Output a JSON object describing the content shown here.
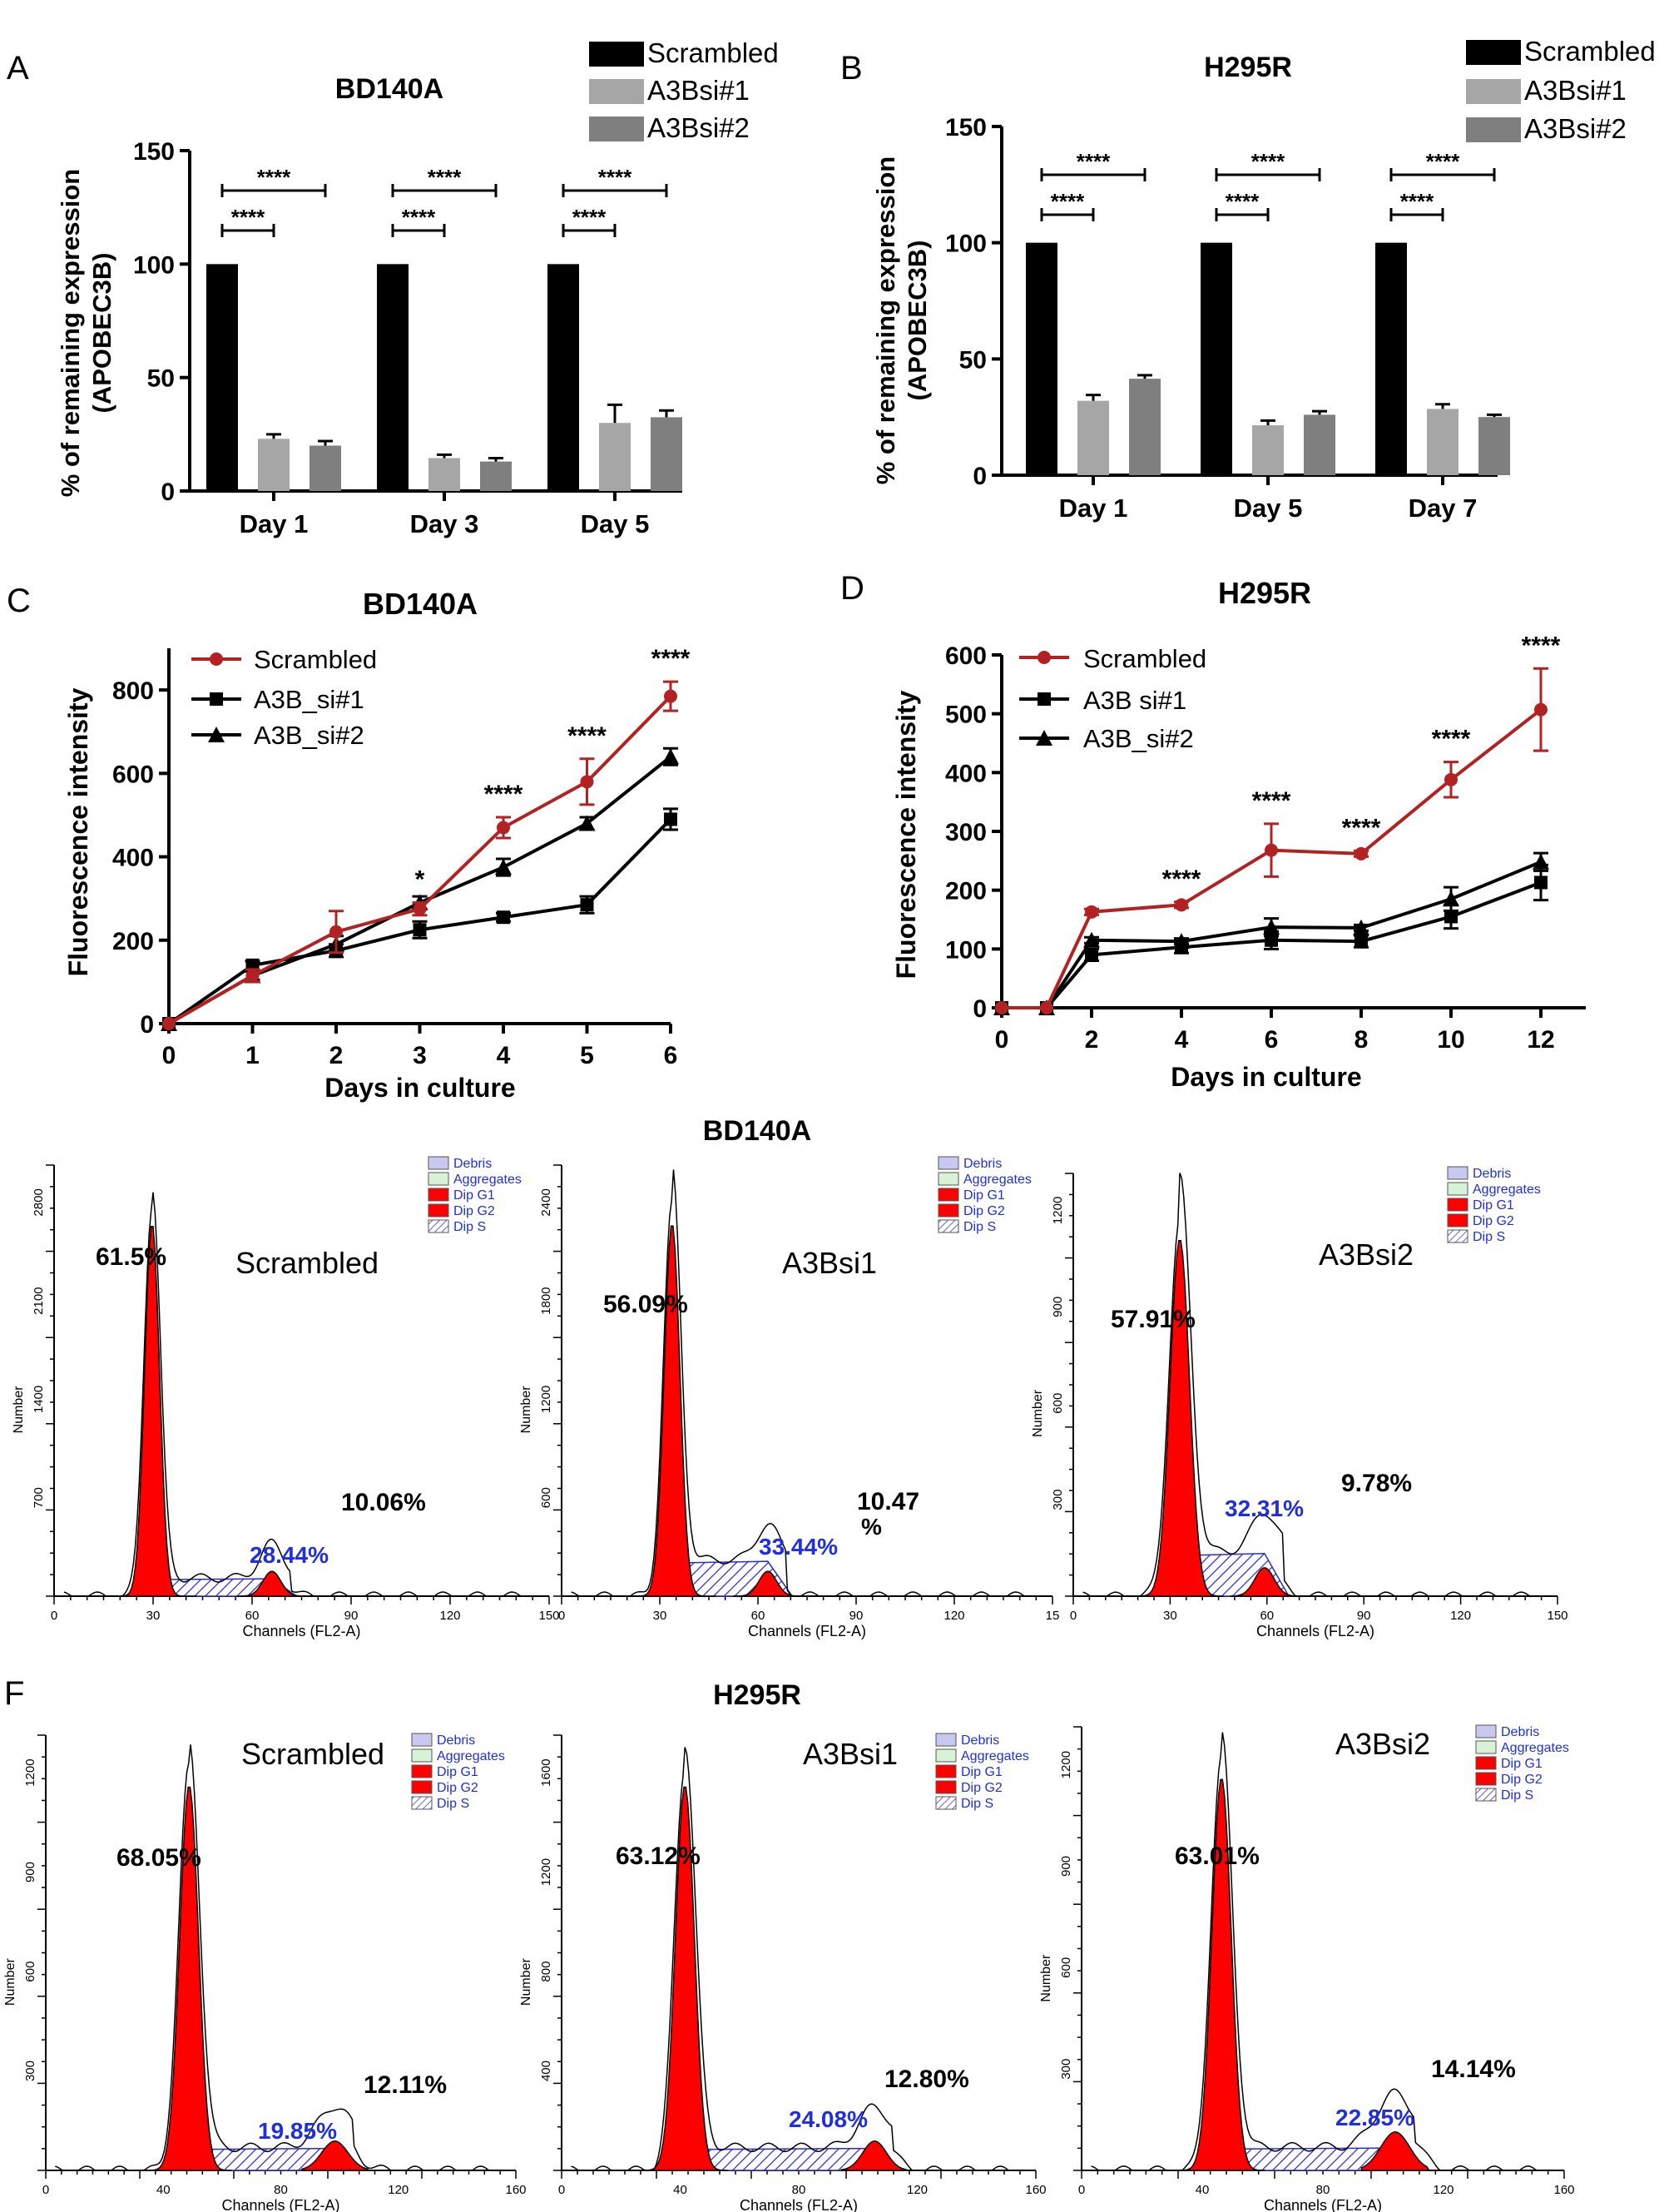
{
  "panel_a": {
    "letter": "A",
    "title": "BD140A",
    "ylabel_line1": "% of remaining expression",
    "ylabel_line2": "(APOBEC3B)",
    "ylim": [
      0,
      150
    ],
    "yticks": [
      "0",
      "50",
      "100",
      "150"
    ],
    "categories": [
      "Day 1",
      "Day 3",
      "Day 5"
    ],
    "legend": [
      "Scrambled",
      "A3Bsi#1",
      "A3Bsi#2"
    ],
    "sig": "****"
  },
  "panel_b": {
    "letter": "B",
    "title": "H295R",
    "ylabel_line1": "% of remaining expression",
    "ylabel_line2": "(APOBEC3B)",
    "ylim": [
      0,
      150
    ],
    "yticks": [
      "0",
      "50",
      "100",
      "150"
    ],
    "categories": [
      "Day 1",
      "Day 5",
      "Day 7"
    ],
    "legend": [
      "Scrambled",
      "A3Bsi#1",
      "A3Bsi#2"
    ],
    "sig": "****"
  },
  "panel_c": {
    "letter": "C",
    "title": "BD140A",
    "ylabel": "Fluorescence intensity",
    "xlabel": "Days in culture",
    "legend": [
      "Scrambled",
      "A3B_si#1",
      "A3B_si#2"
    ],
    "yticks": [
      "0",
      "200",
      "400",
      "600",
      "800"
    ],
    "xticks": [
      "0",
      "1",
      "2",
      "3",
      "4",
      "5",
      "6"
    ],
    "sig_labels": [
      "*",
      "****",
      "****",
      "****"
    ]
  },
  "panel_d": {
    "letter": "D",
    "title": "H295R",
    "ylabel": "Fluorescence intensity",
    "xlabel": "Days in culture",
    "legend": [
      "Scrambled",
      "A3B si#1",
      "A3B_si#2"
    ],
    "yticks": [
      "0",
      "100",
      "200",
      "300",
      "400",
      "500",
      "600"
    ],
    "xticks": [
      "0",
      "2",
      "4",
      "6",
      "8",
      "10",
      "12"
    ],
    "sig_labels": [
      "****",
      "****",
      "****",
      "****",
      "****"
    ]
  },
  "panel_e": {
    "title": "BD140A",
    "legend": [
      "Debris",
      "Aggregates",
      "Dip G1",
      "Dip G2",
      "Dip S"
    ],
    "ylabel": "Number",
    "xlabel": "Channels (FL2-A)",
    "hists": [
      {
        "sample": "Scrambled",
        "g1": "61.5%",
        "s": "28.44%",
        "g2": "10.06%",
        "yticks": [
          "0",
          "700",
          "1400",
          "2100",
          "2800"
        ],
        "xticks": [
          "0",
          "30",
          "60",
          "90",
          "120",
          "150"
        ]
      },
      {
        "sample": "A3Bsi1",
        "g1": "56.09%",
        "s": "33.44%",
        "g2": "10.47",
        "g2_extra": "%",
        "yticks": [
          "0",
          "600",
          "1200",
          "1800",
          "2400"
        ],
        "xticks": [
          "0",
          "30",
          "60",
          "90",
          "120",
          "15"
        ]
      },
      {
        "sample": "A3Bsi2",
        "g1": "57.91%",
        "s": "32.31%",
        "g2": "9.78%",
        "yticks": [
          "0",
          "300",
          "600",
          "900",
          "1200"
        ],
        "xticks": [
          "0",
          "30",
          "60",
          "90",
          "120",
          "150"
        ]
      }
    ]
  },
  "panel_f": {
    "letter": "F",
    "title": "H295R",
    "legend": [
      "Debris",
      "Aggregates",
      "Dip G1",
      "Dip G2",
      "Dip S"
    ],
    "ylabel": "Number",
    "xlabel": "Channels (FL2-A)",
    "hists": [
      {
        "sample": "Scrambled",
        "g1": "68.05%",
        "s": "19.85%",
        "g2": "12.11%",
        "yticks": [
          "0",
          "300",
          "600",
          "900",
          "1200"
        ],
        "xticks": [
          "0",
          "40",
          "80",
          "120",
          "160"
        ]
      },
      {
        "sample": "A3Bsi1",
        "g1": "63.12%",
        "s": "24.08%",
        "g2": "12.80%",
        "yticks": [
          "0",
          "400",
          "800",
          "1200",
          "1600"
        ],
        "xticks": [
          "0",
          "40",
          "80",
          "120",
          "160"
        ]
      },
      {
        "sample": "A3Bsi2",
        "g1": "63.01%",
        "s": "22.85%",
        "g2": "14.14%",
        "yticks": [
          "0",
          "300",
          "600",
          "900",
          "1200"
        ],
        "xticks": [
          "0",
          "40",
          "80",
          "120",
          "160"
        ]
      }
    ]
  },
  "colors": {
    "scrambled": "#000000",
    "si1": "#a6a6a6",
    "si2": "#7f7f7f",
    "red_line": "#b22222",
    "g1_fill": "#ff0000",
    "s_hatch": "#2b2bd0",
    "percent_blue": "#1f2fe0",
    "debris_fill": "#c8c8f0",
    "aggregates_fill": "#d8f2d8"
  },
  "chart_data": [
    {
      "type": "bar",
      "panel": "A",
      "title": "BD140A",
      "categories": [
        "Day 1",
        "Day 3",
        "Day 5"
      ],
      "ylim": [
        0,
        150
      ],
      "series": [
        {
          "name": "Scrambled",
          "values": [
            100,
            100,
            100
          ],
          "err": [
            0,
            0,
            0
          ]
        },
        {
          "name": "A3Bsi#1",
          "values": [
            23,
            14.5,
            30
          ],
          "err": [
            2,
            1.5,
            8
          ]
        },
        {
          "name": "A3Bsi#2",
          "values": [
            20,
            13,
            32.5
          ],
          "err": [
            2,
            1.5,
            3
          ]
        }
      ]
    },
    {
      "type": "bar",
      "panel": "B",
      "title": "H295R",
      "categories": [
        "Day 1",
        "Day 5",
        "Day 7"
      ],
      "ylim": [
        0,
        150
      ],
      "series": [
        {
          "name": "Scrambled",
          "values": [
            100,
            100,
            100
          ],
          "err": [
            0,
            0,
            0
          ]
        },
        {
          "name": "A3Bsi#1",
          "values": [
            32,
            21.5,
            28.5
          ],
          "err": [
            2.5,
            2,
            2
          ]
        },
        {
          "name": "A3Bsi#2",
          "values": [
            41.5,
            26,
            25
          ],
          "err": [
            1.5,
            1.5,
            1
          ]
        }
      ]
    },
    {
      "type": "line",
      "panel": "C",
      "title": "BD140A",
      "xlabel": "Days in culture",
      "ylabel": "Fluorescence intensity",
      "xlim": [
        0,
        6
      ],
      "ylim": [
        0,
        900
      ],
      "x": [
        0,
        1,
        2,
        3,
        4,
        5,
        6
      ],
      "series": [
        {
          "name": "Scrambled",
          "values": [
            0,
            115,
            220,
            275,
            470,
            580,
            785
          ],
          "err": [
            0,
            15,
            50,
            15,
            25,
            55,
            35
          ]
        },
        {
          "name": "A3B_si#1",
          "values": [
            0,
            140,
            175,
            225,
            255,
            285,
            490
          ],
          "err": [
            0,
            10,
            15,
            20,
            10,
            20,
            25
          ]
        },
        {
          "name": "A3B_si#2",
          "values": [
            0,
            115,
            190,
            290,
            375,
            480,
            640
          ],
          "err": [
            0,
            10,
            20,
            15,
            20,
            15,
            20
          ]
        }
      ],
      "sig_x": [
        3,
        4,
        5,
        6
      ]
    },
    {
      "type": "line",
      "panel": "D",
      "title": "H295R",
      "xlabel": "Days in culture",
      "ylabel": "Fluorescence intensity",
      "xlim": [
        0,
        13
      ],
      "ylim": [
        0,
        600
      ],
      "x": [
        0,
        1,
        2,
        4,
        6,
        8,
        10,
        12
      ],
      "series": [
        {
          "name": "Scrambled",
          "values": [
            0,
            0,
            163,
            175,
            268,
            262,
            388,
            507
          ],
          "err": [
            0,
            0,
            5,
            5,
            45,
            5,
            30,
            70
          ]
        },
        {
          "name": "A3B si#1",
          "values": [
            0,
            0,
            90,
            103,
            115,
            113,
            155,
            213
          ],
          "err": [
            0,
            0,
            10,
            10,
            15,
            10,
            20,
            30
          ]
        },
        {
          "name": "A3B_si#2",
          "values": [
            0,
            0,
            115,
            113,
            137,
            136,
            185,
            248
          ],
          "err": [
            0,
            0,
            5,
            5,
            15,
            5,
            20,
            15
          ]
        }
      ],
      "sig_x": [
        4,
        6,
        8,
        10,
        12
      ]
    }
  ]
}
